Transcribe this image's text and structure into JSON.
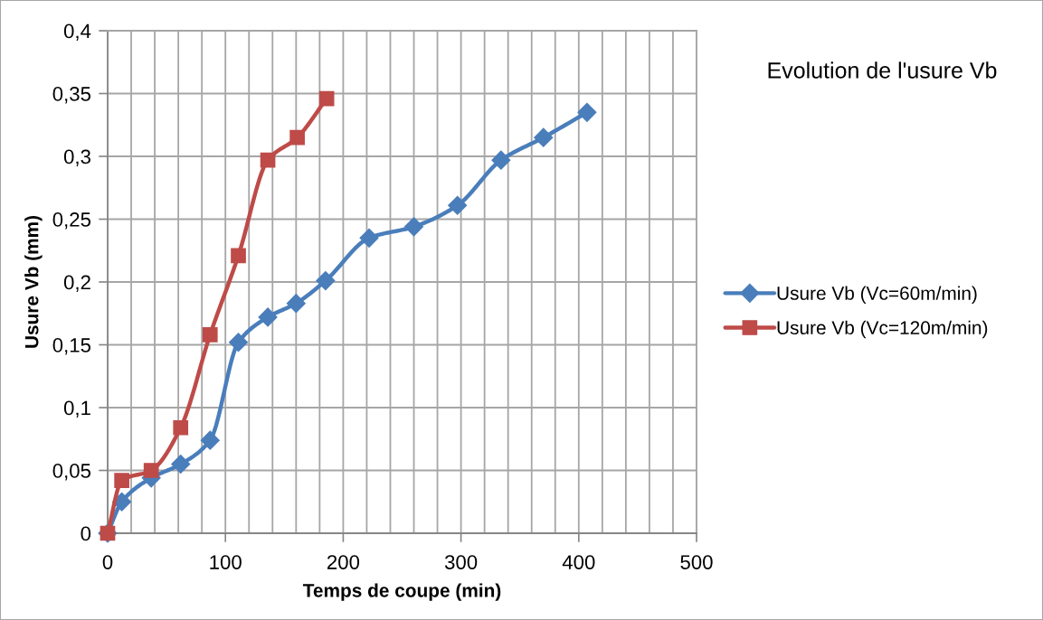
{
  "chart_data": {
    "type": "line",
    "title": "Evolution de l'usure Vb",
    "xlabel": "Temps de coupe (min)",
    "ylabel": "Usure Vb (mm)",
    "xlim": [
      0,
      500
    ],
    "ylim": [
      0,
      0.4
    ],
    "xticks": [
      0,
      {
        "value": 20,
        "label": null
      },
      {
        "value": 40,
        "label": null
      },
      {
        "value": 60,
        "label": null
      },
      {
        "value": 80,
        "label": null
      },
      100,
      {
        "value": 120,
        "label": null
      },
      {
        "value": 140,
        "label": null
      },
      {
        "value": 160,
        "label": null
      },
      {
        "value": 180,
        "label": null
      },
      200,
      {
        "value": 220,
        "label": null
      },
      {
        "value": 240,
        "label": null
      },
      {
        "value": 260,
        "label": null
      },
      {
        "value": 280,
        "label": null
      },
      300,
      {
        "value": 320,
        "label": null
      },
      {
        "value": 340,
        "label": null
      },
      {
        "value": 360,
        "label": null
      },
      {
        "value": 380,
        "label": null
      },
      400,
      {
        "value": 420,
        "label": null
      },
      {
        "value": 440,
        "label": null
      },
      {
        "value": 460,
        "label": null
      },
      {
        "value": 480,
        "label": null
      },
      500
    ],
    "yticks": [
      0,
      {
        "value": 0.05,
        "label": "0,05"
      },
      {
        "value": 0.1,
        "label": "0,1"
      },
      {
        "value": 0.15,
        "label": "0,15"
      },
      {
        "value": 0.2,
        "label": "0,2"
      },
      {
        "value": 0.25,
        "label": "0,25"
      },
      {
        "value": 0.3,
        "label": "0,3"
      },
      {
        "value": 0.35,
        "label": "0,35"
      },
      {
        "value": 0.4,
        "label": "0,4"
      }
    ],
    "grid": true,
    "legend": "right",
    "series": [
      {
        "name": "Usure Vb (Vc=60m/min)",
        "color": "#4a7ebb",
        "marker": "diamond",
        "x": [
          0,
          12,
          37,
          62,
          87,
          111,
          136,
          160,
          185,
          222,
          260,
          297,
          334,
          370,
          407
        ],
        "values": [
          0,
          0.025,
          0.044,
          0.055,
          0.074,
          0.152,
          0.172,
          0.183,
          0.201,
          0.235,
          0.244,
          0.261,
          0.297,
          0.315,
          0.335
        ]
      },
      {
        "name": "Usure Vb (Vc=120m/min)",
        "color": "#be4b48",
        "marker": "square",
        "x": [
          0,
          12,
          37,
          62,
          87,
          111,
          136,
          161,
          186
        ],
        "values": [
          0,
          0.042,
          0.05,
          0.084,
          0.158,
          0.221,
          0.297,
          0.315,
          0.346
        ]
      }
    ]
  }
}
